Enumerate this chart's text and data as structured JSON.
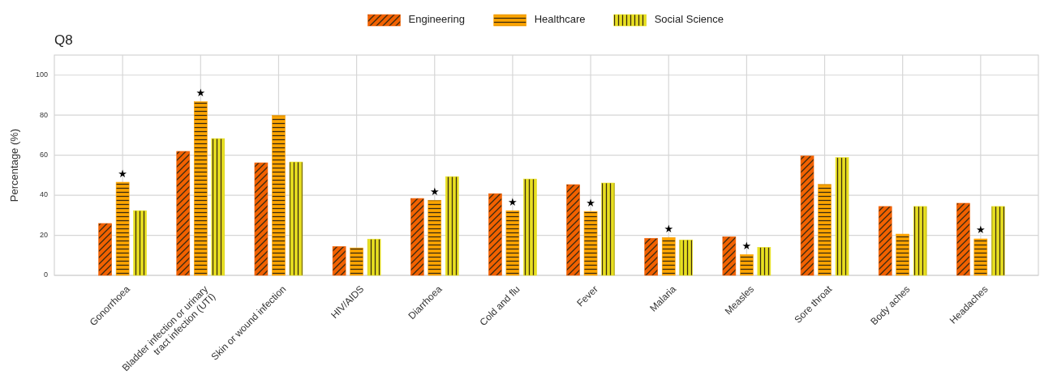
{
  "chart_data": {
    "type": "bar",
    "title": "Q8",
    "ylabel": "Percentage (%)",
    "categories": [
      "Gonorrhoea",
      "Bladder infection or urinary\ntract infection (UTI)",
      "Skin or wound infection",
      "HIV/AIDS",
      "Diarrhoea",
      "Cold and flu",
      "Fever",
      "Malaria",
      "Measles",
      "Sore throat",
      "Body aches",
      "Headaches"
    ],
    "series": [
      {
        "name": "Engineering",
        "color": "#f26100",
        "values": [
          25.9,
          61.9,
          56.2,
          14.4,
          38.4,
          40.8,
          45.3,
          18.5,
          19.3,
          59.6,
          34.4,
          36.0
        ]
      },
      {
        "name": "Healthcare",
        "color": "#ffa500",
        "values": [
          46.5,
          86.7,
          79.8,
          13.7,
          37.5,
          32.3,
          31.9,
          18.9,
          10.4,
          45.4,
          20.6,
          18.2
        ]
      },
      {
        "name": "Social Science",
        "color": "#e8e020",
        "values": [
          32.3,
          68.3,
          56.6,
          18.1,
          49.3,
          48.1,
          46.1,
          17.7,
          14.0,
          58.8,
          34.4,
          34.4
        ]
      }
    ],
    "ylim": [
      0,
      110
    ],
    "yticks": [
      0,
      20,
      40,
      60,
      80,
      100
    ],
    "grid": true,
    "legend": "top",
    "annotations": [
      {
        "text": "★",
        "x": "Gonorrhoea",
        "y": 46.5
      },
      {
        "text": "★",
        "x": "Bladder infection or urinary\ntract infection (UTI)",
        "y": 86.7
      },
      {
        "text": "★",
        "x": "Diarrhoea",
        "y": 37.5
      },
      {
        "text": "★",
        "x": "Cold and flu",
        "y": 32.3
      },
      {
        "text": "★",
        "x": "Fever",
        "y": 31.9
      },
      {
        "text": "★",
        "x": "Malaria",
        "y": 18.9
      },
      {
        "text": "★",
        "x": "Measles",
        "y": 10.4
      },
      {
        "text": "★",
        "x": "Headaches",
        "y": 18.2
      }
    ]
  }
}
